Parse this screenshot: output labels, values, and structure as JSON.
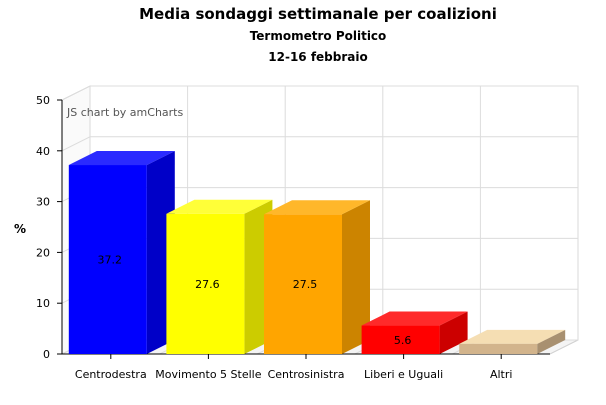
{
  "chart_data": {
    "type": "bar",
    "title": "Media sondaggi settimanale per coalizioni",
    "subtitle": "Termometro Politico",
    "date_range": "12-16 febbraio",
    "ylabel": "%",
    "xlabel": "",
    "watermark": "JS chart by amCharts",
    "ylim": [
      0,
      50
    ],
    "yticks": [
      0,
      10,
      20,
      30,
      40,
      50
    ],
    "grid": true,
    "legend": "none",
    "categories": [
      "Centrodestra",
      "Movimento 5 Stelle",
      "Centrosinistra",
      "Liberi e Uguali",
      "Altri"
    ],
    "values": [
      37.2,
      27.6,
      27.5,
      5.6,
      2.0
    ],
    "data_labels": [
      "37.2",
      "27.6",
      "27.5",
      "5.6",
      ""
    ],
    "colors": [
      {
        "front": "#0000ff",
        "top": "#2a2aff",
        "side": "#0000c8"
      },
      {
        "front": "#ffff00",
        "top": "#ffff38",
        "side": "#cccc00"
      },
      {
        "front": "#ffa500",
        "top": "#ffb72a",
        "side": "#cc8400"
      },
      {
        "front": "#ff0000",
        "top": "#ff2a2a",
        "side": "#cc0000"
      },
      {
        "front": "#d2b48c",
        "top": "#f5deb3",
        "side": "#a89070"
      }
    ]
  }
}
